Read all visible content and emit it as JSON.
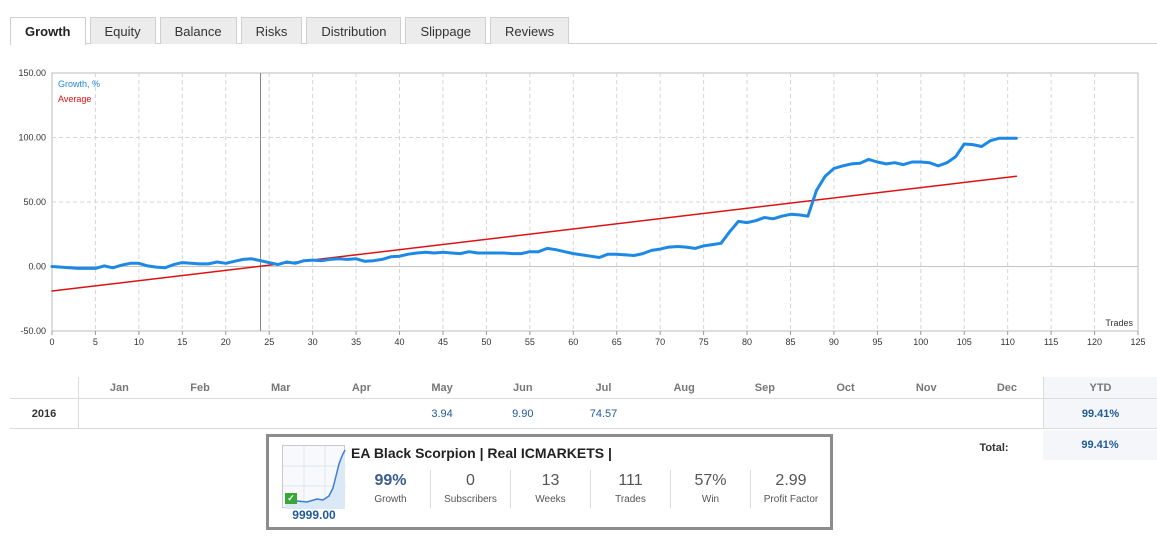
{
  "tabs": [
    {
      "label": "Growth",
      "active": true
    },
    {
      "label": "Equity",
      "active": false
    },
    {
      "label": "Balance",
      "active": false
    },
    {
      "label": "Risks",
      "active": false
    },
    {
      "label": "Distribution",
      "active": false
    },
    {
      "label": "Slippage",
      "active": false
    },
    {
      "label": "Reviews",
      "active": false
    }
  ],
  "chart_data": {
    "type": "line",
    "xlabel": "Trades",
    "ylabel": "",
    "xlim": [
      0,
      125
    ],
    "ylim": [
      -50,
      150
    ],
    "x_ticks": [
      0,
      5,
      10,
      15,
      20,
      25,
      30,
      35,
      40,
      45,
      50,
      55,
      60,
      65,
      70,
      75,
      80,
      85,
      90,
      95,
      100,
      105,
      110,
      115,
      120,
      125
    ],
    "y_ticks": [
      "-50.00",
      "0.00",
      "50.00",
      "100.00",
      "150.00"
    ],
    "y_tick_values": [
      -50,
      0,
      50,
      100,
      150
    ],
    "grid": true,
    "marker_x": 24,
    "legend_placement": "top-left",
    "colors": {
      "growth": "#1e88e5",
      "average": "#dd1111"
    },
    "series": [
      {
        "name": "Growth, %",
        "color": "#1e88e5",
        "x": [
          0,
          1,
          2,
          3,
          4,
          5,
          6,
          7,
          8,
          9,
          10,
          11,
          12,
          13,
          14,
          15,
          16,
          17,
          18,
          19,
          20,
          21,
          22,
          23,
          24,
          25,
          26,
          27,
          28,
          29,
          30,
          31,
          32,
          33,
          34,
          35,
          36,
          37,
          38,
          39,
          40,
          41,
          42,
          43,
          44,
          45,
          46,
          47,
          48,
          49,
          50,
          51,
          52,
          53,
          54,
          55,
          56,
          57,
          58,
          59,
          60,
          61,
          62,
          63,
          64,
          65,
          66,
          67,
          68,
          69,
          70,
          71,
          72,
          73,
          74,
          75,
          76,
          77,
          78,
          79,
          80,
          81,
          82,
          83,
          84,
          85,
          86,
          87,
          88,
          89,
          90,
          91,
          92,
          93,
          94,
          95,
          96,
          97,
          98,
          99,
          100,
          101,
          102,
          103,
          104,
          105,
          106,
          107,
          108,
          109,
          110,
          111
        ],
        "y": [
          0,
          -0.5,
          -1,
          -1.5,
          -1.5,
          -1.5,
          0.5,
          -1,
          1,
          2.5,
          2.5,
          0.5,
          -0.5,
          -1,
          1.5,
          3,
          2.5,
          2,
          2,
          3.5,
          2.5,
          4,
          5.5,
          6,
          4.5,
          3,
          1.5,
          3.5,
          2.5,
          4.5,
          5,
          4.5,
          5.5,
          6,
          5.5,
          6,
          4,
          4.5,
          5.5,
          7.5,
          8,
          9.5,
          10.5,
          11,
          10.5,
          11,
          10.5,
          10,
          11.5,
          10.5,
          10.5,
          10.5,
          10.5,
          10,
          10,
          11.5,
          11.5,
          14,
          13,
          11.5,
          10,
          9,
          8,
          7,
          9.5,
          9.5,
          9,
          8.5,
          10,
          12.5,
          13.5,
          15,
          15.5,
          15,
          14,
          16,
          17,
          18,
          27,
          35,
          34,
          35.5,
          38,
          37,
          39,
          40.5,
          40,
          39,
          59,
          70,
          76,
          78,
          79.5,
          80,
          83,
          81,
          79.5,
          80.5,
          79,
          81,
          81,
          80.5,
          78,
          80.5,
          85,
          95,
          94.5,
          93,
          97.5,
          99.4,
          99.4,
          99.41
        ]
      },
      {
        "name": "Average",
        "color": "#dd1111",
        "x": [
          0,
          111
        ],
        "y": [
          -19,
          70
        ]
      }
    ]
  },
  "table": {
    "months": [
      "Jan",
      "Feb",
      "Mar",
      "Apr",
      "May",
      "Jun",
      "Jul",
      "Aug",
      "Sep",
      "Oct",
      "Nov",
      "Dec"
    ],
    "ytd_label": "YTD",
    "rows": [
      {
        "year": "2016",
        "values": [
          "",
          "",
          "",
          "",
          "3.94",
          "9.90",
          "74.57",
          "",
          "",
          "",
          "",
          ""
        ],
        "ytd": "99.41%"
      }
    ],
    "total_label": "Total:",
    "total_value": "99.41%"
  },
  "widget": {
    "title": "EA Black Scorpion | Real ICMARKETS |",
    "price": "9999.00",
    "stats": [
      {
        "value": "99%",
        "label": "Growth"
      },
      {
        "value": "0",
        "label": "Subscribers"
      },
      {
        "value": "13",
        "label": "Weeks"
      },
      {
        "value": "111",
        "label": "Trades"
      },
      {
        "value": "57%",
        "label": "Win"
      },
      {
        "value": "2.99",
        "label": "Profit Factor"
      }
    ]
  }
}
